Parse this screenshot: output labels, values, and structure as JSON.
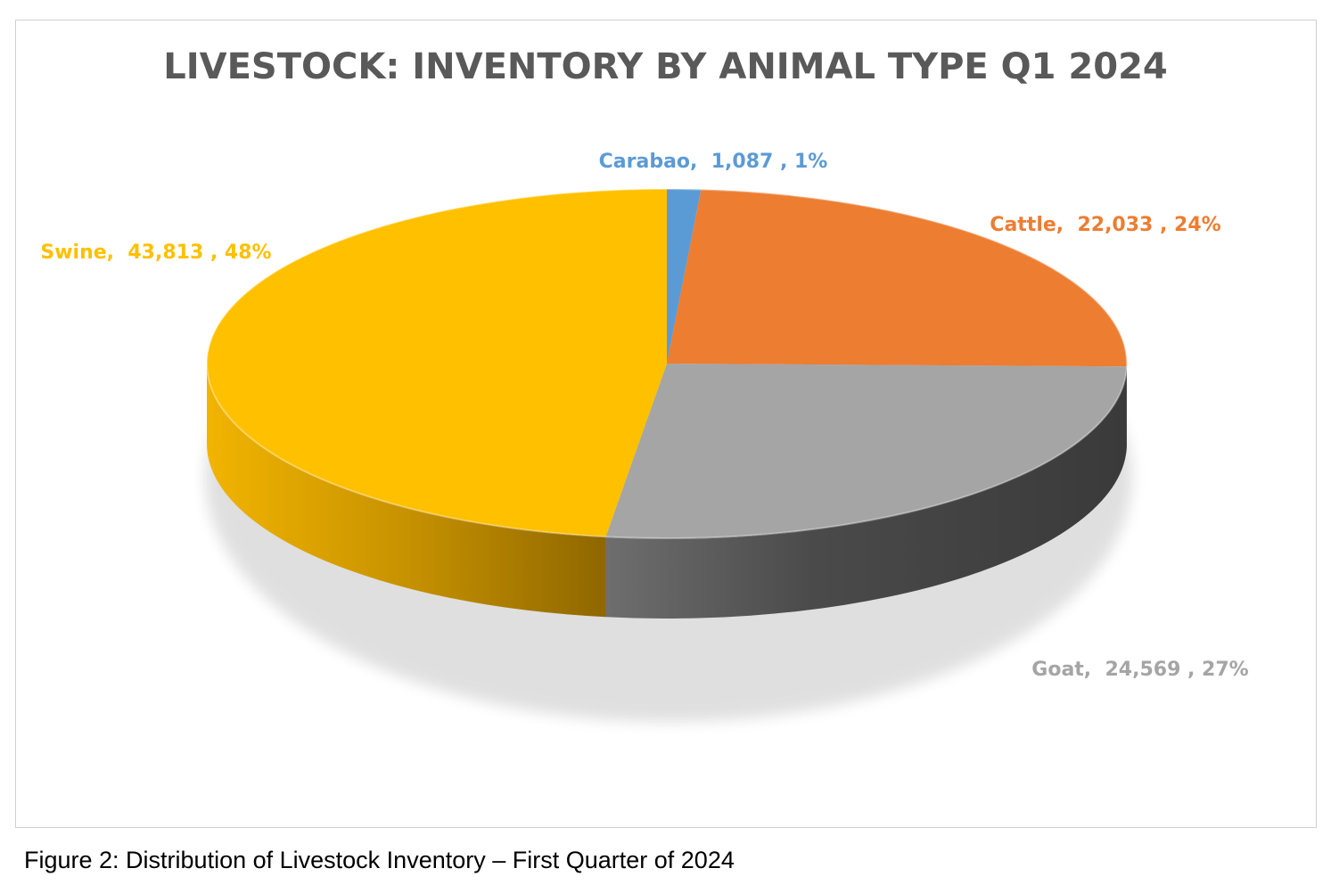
{
  "chart_data": {
    "type": "pie",
    "title": "LIVESTOCK: INVENTORY BY ANIMAL TYPE Q1 2024",
    "slices": [
      {
        "name": "Carabao",
        "value": 1087,
        "value_label": "1,087",
        "percent_label": "1%",
        "color": "#5b9bd5"
      },
      {
        "name": "Cattle",
        "value": 22033,
        "value_label": "22,033",
        "percent_label": "24%",
        "color": "#ed7d31"
      },
      {
        "name": "Goat",
        "value": 24569,
        "value_label": "24,569",
        "percent_label": "27%",
        "color": "#a5a5a5"
      },
      {
        "name": "Swine",
        "value": 43813,
        "value_label": "43,813",
        "percent_label": "48%",
        "color": "#ffc000"
      }
    ]
  },
  "caption": "Figure 2: Distribution of Livestock Inventory – First Quarter of 2024"
}
